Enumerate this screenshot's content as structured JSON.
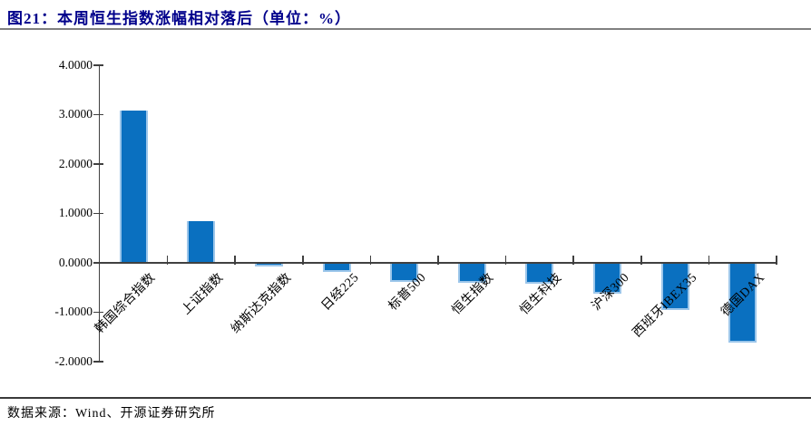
{
  "page": {
    "title": "图21：本周恒生指数涨幅相对落后（单位：%）"
  },
  "footer": {
    "source": "数据来源：Wind、开源证券研究所"
  },
  "colors": {
    "bar_fill": "#0a70c0",
    "bar_edge": "#9cc6ea",
    "title_text": "#00008b",
    "axis": "#404040",
    "title_divider": "#808080",
    "footer_divider": "#3a3a3a"
  },
  "chart_data": {
    "type": "bar",
    "title": "本周恒生指数涨幅相对落后",
    "unit": "%",
    "categories": [
      "韩国综合指数",
      "上证指数",
      "纳斯达克指数",
      "日经225",
      "标普500",
      "恒生指数",
      "恒生科技",
      "沪深300",
      "西班牙IBEX35",
      "德国DAX"
    ],
    "values": [
      3.08,
      0.84,
      -0.08,
      -0.18,
      -0.39,
      -0.4,
      -0.42,
      -0.63,
      -0.96,
      -1.62
    ],
    "xlabel": "",
    "ylabel": "",
    "ylim": [
      -2.0,
      4.0
    ],
    "y_ticks": [
      4.0,
      3.0,
      2.0,
      1.0,
      0.0,
      -1.0,
      -2.0
    ],
    "y_tick_labels": [
      "4.0000",
      "3.0000",
      "2.0000",
      "1.0000",
      "0.0000",
      "-1.0000",
      "-2.0000"
    ],
    "grid": false,
    "legend": "none",
    "bar_orientation": "vertical",
    "x_label_rotation_deg": -45
  }
}
